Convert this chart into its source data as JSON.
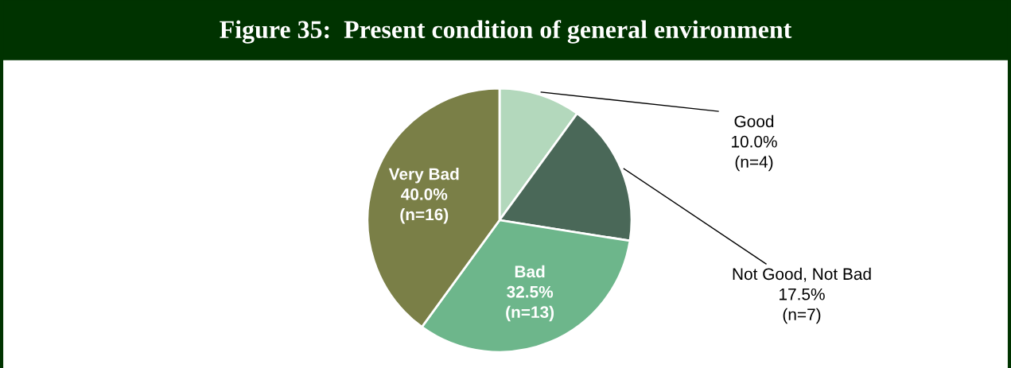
{
  "chart_data": {
    "type": "pie",
    "title": "Figure 35:  Present condition of general environment",
    "categories": [
      "Good",
      "Not Good, Not Bad",
      "Bad",
      "Very Bad"
    ],
    "values": [
      10.0,
      17.5,
      32.5,
      40.0
    ],
    "value_labels": [
      "10.0%\n(n=4)",
      "17.5%\n(n=7)",
      "32.5%\n(n=13)",
      "40.0%\n(n=16)"
    ],
    "colors": [
      "#b3d8bc",
      "#4a6858",
      "#6db68b",
      "#7a7f47"
    ],
    "legend": false
  }
}
